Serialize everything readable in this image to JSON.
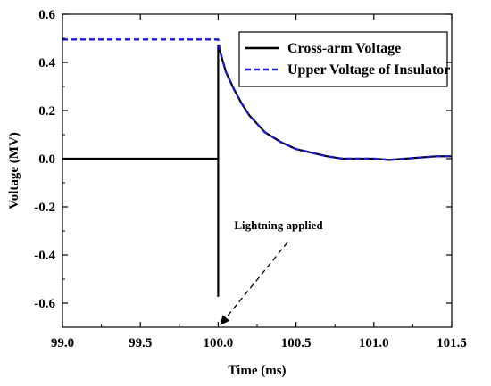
{
  "chart_data": {
    "type": "line",
    "xlabel": "Time (ms)",
    "ylabel": "Voltage (MV)",
    "xlim": [
      99.0,
      101.5
    ],
    "ylim": [
      -0.7,
      0.6
    ],
    "x_ticks": [
      99.0,
      99.5,
      100.0,
      100.5,
      101.0,
      101.5
    ],
    "x_tick_labels": [
      "99.0",
      "99.5",
      "100.0",
      "100.5",
      "101.0",
      "101.5"
    ],
    "y_ticks": [
      0.6,
      0.4,
      0.2,
      0.0,
      -0.2,
      -0.4,
      -0.6
    ],
    "y_tick_labels": [
      "0.6",
      "0.4",
      "0.2",
      "0.0",
      "-0.2",
      "-0.4",
      "-0.6"
    ],
    "grid": false,
    "legend_position": "top-right",
    "series": [
      {
        "name": "Cross-arm Voltage",
        "color": "#000000",
        "style": "solid",
        "x": [
          99.0,
          100.0,
          100.0,
          100.0,
          100.01,
          100.05,
          100.1,
          100.15,
          100.2,
          100.3,
          100.4,
          100.5,
          100.6,
          100.7,
          100.8,
          100.9,
          101.0,
          101.1,
          101.2,
          101.3,
          101.4,
          101.5
        ],
        "y": [
          0.0,
          0.0,
          -0.57,
          0.47,
          0.45,
          0.36,
          0.29,
          0.23,
          0.18,
          0.11,
          0.07,
          0.04,
          0.025,
          0.01,
          0.0,
          0.0,
          0.0,
          -0.005,
          0.0,
          0.005,
          0.01,
          0.01
        ]
      },
      {
        "name": "Upper Voltage of Insulator",
        "color": "#1a1adb",
        "style": "dashed",
        "x": [
          99.0,
          100.0,
          100.01,
          100.05,
          100.1,
          100.15,
          100.2,
          100.3,
          100.4,
          100.5,
          100.6,
          100.7,
          100.8,
          100.9,
          101.0,
          101.1,
          101.2,
          101.3,
          101.4,
          101.5
        ],
        "y": [
          0.495,
          0.495,
          0.45,
          0.36,
          0.29,
          0.23,
          0.18,
          0.11,
          0.07,
          0.04,
          0.025,
          0.01,
          0.0,
          0.0,
          0.0,
          -0.005,
          0.0,
          0.005,
          0.01,
          0.01
        ]
      }
    ],
    "annotations": [
      {
        "text": "Lightning applied",
        "arrow_to": [
          100.0,
          -0.7
        ]
      }
    ]
  }
}
